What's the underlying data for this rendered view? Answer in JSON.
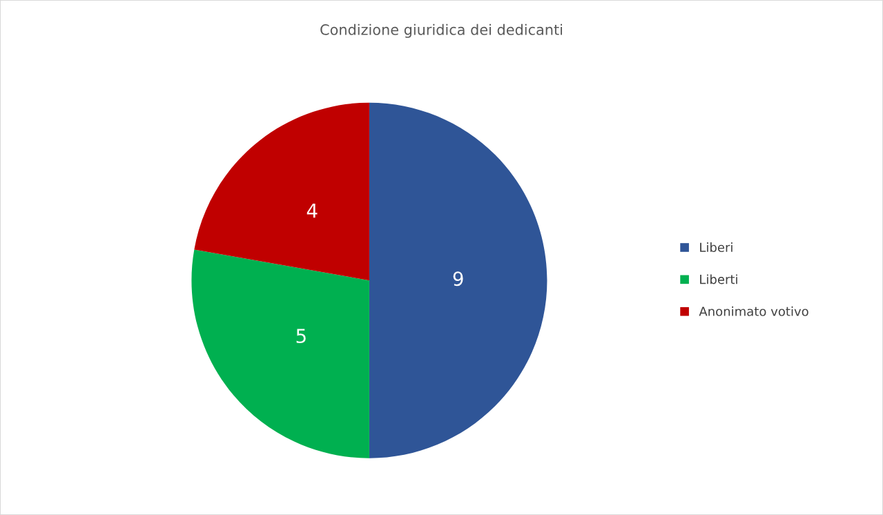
{
  "chart_data": {
    "type": "pie",
    "title": "Condizione giuridica dei dedicanti",
    "categories": [
      "Liberi",
      "Liberti",
      "Anonimato votivo"
    ],
    "values": [
      9,
      5,
      4
    ],
    "colors": [
      "#2f5597",
      "#00b050",
      "#c00000"
    ],
    "data_labels": true,
    "legend": "right"
  }
}
